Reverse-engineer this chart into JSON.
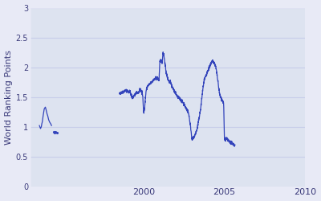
{
  "title": "",
  "ylabel": "World Ranking Points",
  "xlabel": "",
  "xlim": [
    1993,
    2010
  ],
  "ylim": [
    0,
    3
  ],
  "yticks": [
    0,
    0.5,
    1.0,
    1.5,
    2.0,
    2.5,
    3.0
  ],
  "xticks": [
    2000,
    2005,
    2010
  ],
  "xtick_labels": [
    "2000",
    "2005",
    "2010"
  ],
  "line_color": "#3344bb",
  "bg_color": "#e8eaf6",
  "axes_bg_color": "#dde3f0",
  "grid_color": "#c8ceea",
  "figsize": [
    4.0,
    2.5
  ],
  "dpi": 100,
  "ytick_fontsize": 7,
  "xtick_fontsize": 8,
  "ylabel_fontsize": 8
}
